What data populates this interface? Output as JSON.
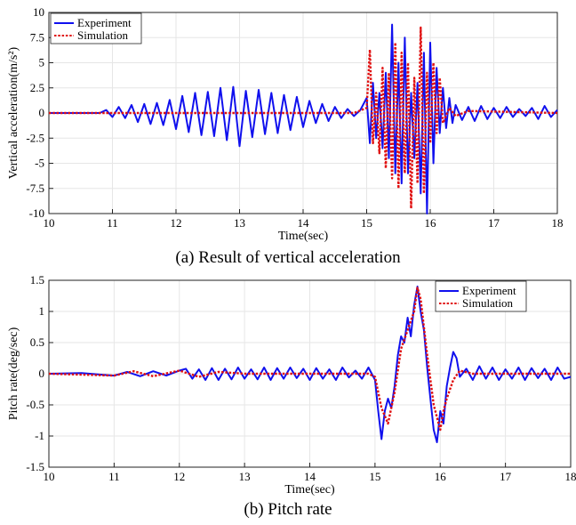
{
  "captions": {
    "a": "(a) Result of vertical acceleration",
    "b": "(b) Pitch rate"
  },
  "colors": {
    "experiment": "#1010ee",
    "simulation": "#e01010",
    "grid": "#e6e6e6"
  },
  "chart_data": [
    {
      "type": "line",
      "xlabel": "Time(sec)",
      "ylabel": "Vertical acceleration(m/s²)",
      "xlim": [
        10,
        18
      ],
      "ylim": [
        -10,
        10
      ],
      "xticks": [
        10,
        11,
        12,
        13,
        14,
        15,
        16,
        17,
        18
      ],
      "yticks": [
        -10,
        -7.5,
        -5,
        -2.5,
        0,
        2.5,
        5,
        7.5,
        10
      ],
      "yticklabels": [
        "-10",
        "-7.5",
        "-5",
        "-2.5",
        "0",
        "2.5",
        "5",
        "7.5",
        "10"
      ],
      "grid": true,
      "legend": "top-left",
      "series": [
        {
          "name": "Experiment",
          "x": [
            10,
            10.8,
            10.9,
            11.0,
            11.1,
            11.2,
            11.3,
            11.4,
            11.5,
            11.6,
            11.7,
            11.8,
            11.9,
            12.0,
            12.1,
            12.2,
            12.3,
            12.4,
            12.5,
            12.6,
            12.7,
            12.8,
            12.9,
            13.0,
            13.1,
            13.2,
            13.3,
            13.4,
            13.5,
            13.6,
            13.7,
            13.8,
            13.9,
            14.0,
            14.1,
            14.2,
            14.3,
            14.4,
            14.5,
            14.6,
            14.7,
            14.8,
            14.9,
            15.0,
            15.05,
            15.1,
            15.15,
            15.2,
            15.25,
            15.3,
            15.35,
            15.4,
            15.45,
            15.5,
            15.55,
            15.6,
            15.65,
            15.7,
            15.75,
            15.8,
            15.85,
            15.9,
            15.95,
            16.0,
            16.05,
            16.1,
            16.15,
            16.2,
            16.25,
            16.3,
            16.35,
            16.4,
            16.5,
            16.6,
            16.7,
            16.8,
            16.9,
            17.0,
            17.1,
            17.2,
            17.3,
            17.4,
            17.5,
            17.6,
            17.7,
            17.8,
            17.9,
            18.0
          ],
          "values": [
            0,
            0,
            0.3,
            -0.4,
            0.6,
            -0.5,
            0.8,
            -0.9,
            0.9,
            -1.1,
            1.0,
            -1.2,
            1.3,
            -1.6,
            1.7,
            -1.9,
            2.0,
            -2.2,
            2.1,
            -2.3,
            2.5,
            -2.7,
            2.6,
            -3.3,
            2.2,
            -2.4,
            2.3,
            -2.1,
            2.0,
            -2.0,
            1.8,
            -1.7,
            1.6,
            -1.4,
            1.2,
            -1.0,
            0.9,
            -0.8,
            0.6,
            -0.5,
            0.4,
            -0.3,
            0.3,
            1.5,
            -3.0,
            3.0,
            -2.5,
            2.0,
            -3.5,
            4.0,
            -4.5,
            8.8,
            -6.0,
            5.0,
            -7.0,
            7.5,
            -6.0,
            2.0,
            -4.5,
            3.0,
            -8.0,
            6.0,
            -10.0,
            7.0,
            -5.0,
            4.5,
            -2.0,
            2.5,
            -1.5,
            1.5,
            -1.0,
            0.8,
            -0.7,
            0.6,
            -0.8,
            0.7,
            -0.6,
            0.5,
            -0.5,
            0.6,
            -0.4,
            0.4,
            -0.3,
            0.5,
            -0.6,
            0.7,
            -0.4,
            0.3
          ]
        },
        {
          "name": "Simulation",
          "x": [
            10,
            14.8,
            15.0,
            15.05,
            15.1,
            15.15,
            15.2,
            15.25,
            15.3,
            15.35,
            15.4,
            15.45,
            15.5,
            15.55,
            15.6,
            15.65,
            15.7,
            15.75,
            15.8,
            15.85,
            15.9,
            15.95,
            16.0,
            16.05,
            16.1,
            16.15,
            16.2,
            16.3,
            16.4,
            16.6,
            18.0
          ],
          "values": [
            0,
            0,
            0.5,
            6.3,
            -3.0,
            2.0,
            -4.0,
            4.5,
            -5.5,
            4.0,
            -6.5,
            7.0,
            -7.5,
            6.0,
            -6.0,
            5.0,
            -9.5,
            3.5,
            -7.0,
            8.5,
            -8.0,
            4.0,
            -3.0,
            5.0,
            -2.0,
            3.5,
            -1.0,
            0.5,
            -0.3,
            0.2,
            0
          ]
        }
      ]
    },
    {
      "type": "line",
      "xlabel": "Time(sec)",
      "ylabel": "Pitch rate(deg/sec)",
      "xlim": [
        10,
        18
      ],
      "ylim": [
        -1.5,
        1.5
      ],
      "xticks": [
        10,
        11,
        12,
        13,
        14,
        15,
        16,
        17,
        18
      ],
      "yticks": [
        -1.5,
        -1,
        -0.5,
        0,
        0.5,
        1,
        1.5
      ],
      "yticklabels": [
        "-1.5",
        "-1",
        "-0.5",
        "0",
        "0.5",
        "1",
        "1.5"
      ],
      "grid": true,
      "legend": "top-right",
      "series": [
        {
          "name": "Experiment",
          "x": [
            10,
            10.5,
            11.0,
            11.2,
            11.4,
            11.6,
            11.8,
            12.0,
            12.1,
            12.2,
            12.3,
            12.4,
            12.5,
            12.6,
            12.7,
            12.8,
            12.9,
            13.0,
            13.1,
            13.2,
            13.3,
            13.4,
            13.5,
            13.6,
            13.7,
            13.8,
            13.9,
            14.0,
            14.1,
            14.2,
            14.3,
            14.4,
            14.5,
            14.6,
            14.7,
            14.8,
            14.9,
            15.0,
            15.05,
            15.1,
            15.15,
            15.2,
            15.25,
            15.3,
            15.35,
            15.4,
            15.45,
            15.5,
            15.55,
            15.6,
            15.65,
            15.7,
            15.75,
            15.8,
            15.85,
            15.9,
            15.95,
            16.0,
            16.05,
            16.1,
            16.15,
            16.2,
            16.25,
            16.3,
            16.4,
            16.5,
            16.6,
            16.7,
            16.8,
            16.9,
            17.0,
            17.1,
            17.2,
            17.3,
            17.4,
            17.5,
            17.6,
            17.7,
            17.8,
            17.9,
            18.0
          ],
          "values": [
            0,
            0.01,
            -0.03,
            0.03,
            -0.04,
            0.04,
            -0.03,
            0.05,
            0.08,
            -0.08,
            0.07,
            -0.1,
            0.09,
            -0.1,
            0.08,
            -0.09,
            0.1,
            -0.08,
            0.07,
            -0.09,
            0.1,
            -0.1,
            0.09,
            -0.08,
            0.1,
            -0.07,
            0.08,
            -0.1,
            0.09,
            -0.08,
            0.07,
            -0.1,
            0.1,
            -0.06,
            0.05,
            -0.08,
            0.1,
            -0.1,
            -0.6,
            -1.05,
            -0.6,
            -0.4,
            -0.55,
            -0.2,
            0.3,
            0.6,
            0.5,
            0.9,
            0.6,
            1.1,
            1.4,
            1.0,
            0.7,
            0.1,
            -0.4,
            -0.9,
            -1.1,
            -0.6,
            -0.8,
            -0.2,
            0.1,
            0.35,
            0.25,
            -0.05,
            0.08,
            -0.1,
            0.12,
            -0.08,
            0.1,
            -0.1,
            0.07,
            -0.08,
            0.1,
            -0.1,
            0.09,
            -0.07,
            0.08,
            -0.1,
            0.1,
            -0.08,
            -0.05
          ]
        },
        {
          "name": "Simulation",
          "x": [
            10,
            11.0,
            11.3,
            11.6,
            12.0,
            12.3,
            12.6,
            13.0,
            14.9,
            15.0,
            15.1,
            15.2,
            15.3,
            15.4,
            15.5,
            15.6,
            15.65,
            15.7,
            15.8,
            15.9,
            16.0,
            16.05,
            16.1,
            16.2,
            16.3,
            16.5,
            18.0
          ],
          "values": [
            0,
            -0.03,
            0.04,
            -0.04,
            0.05,
            -0.05,
            0.03,
            0,
            0,
            -0.05,
            -0.55,
            -0.8,
            -0.3,
            0.4,
            0.7,
            1.0,
            1.38,
            1.2,
            0.3,
            -0.5,
            -0.9,
            -0.6,
            -0.4,
            -0.1,
            0.05,
            0,
            0
          ]
        }
      ]
    }
  ]
}
